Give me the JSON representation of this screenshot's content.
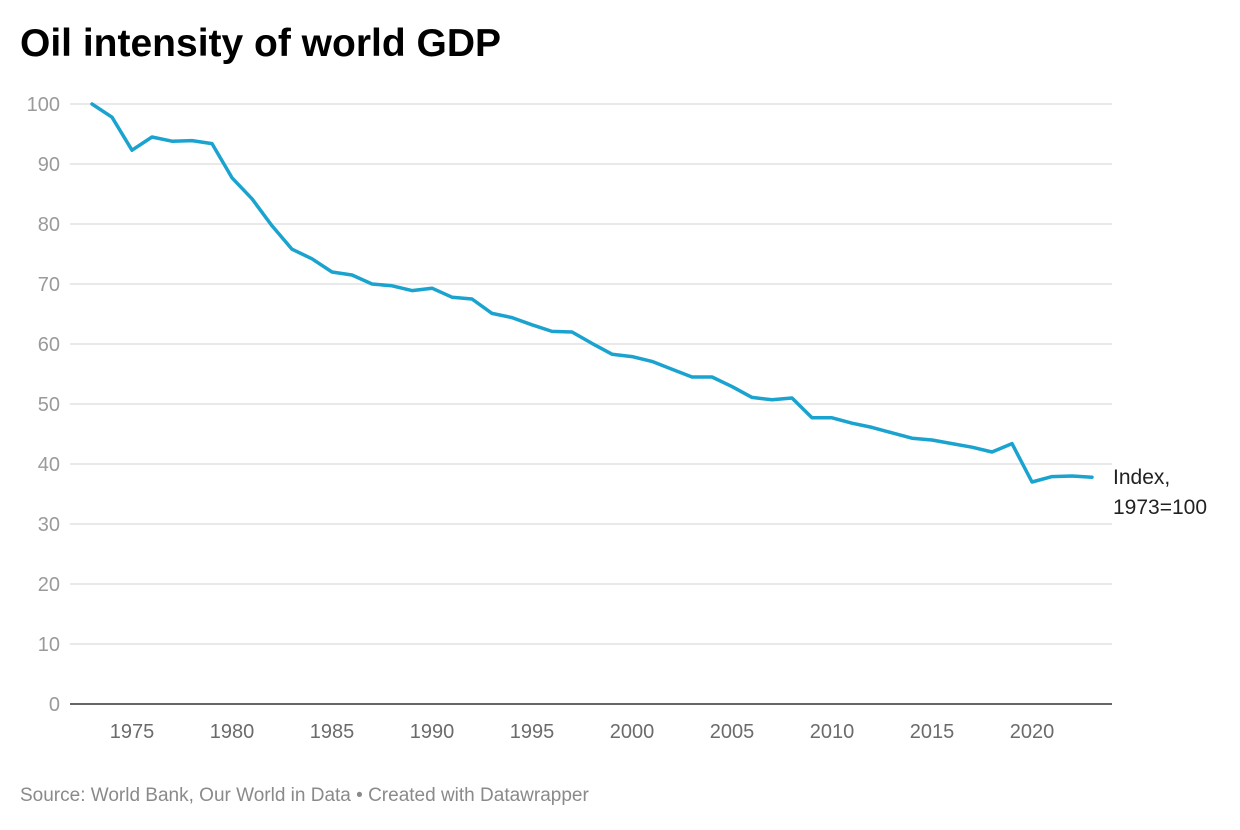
{
  "chart_data": {
    "type": "line",
    "title": "Oil intensity of world GDP",
    "xlabel": "",
    "ylabel": "",
    "ylim": [
      0,
      100
    ],
    "xlim": [
      1973,
      2023
    ],
    "grid": true,
    "yticks": [
      0,
      10,
      20,
      30,
      40,
      50,
      60,
      70,
      80,
      90,
      100
    ],
    "xticks": [
      1975,
      1980,
      1985,
      1990,
      1995,
      2000,
      2005,
      2010,
      2015,
      2020
    ],
    "series": [
      {
        "name": "Index, 1973=100",
        "label_lines": [
          "Index,",
          "1973=100"
        ],
        "color": "#1ba3d0",
        "x": [
          1973,
          1974,
          1975,
          1976,
          1977,
          1978,
          1979,
          1980,
          1981,
          1982,
          1983,
          1984,
          1985,
          1986,
          1987,
          1988,
          1989,
          1990,
          1991,
          1992,
          1993,
          1994,
          1995,
          1996,
          1997,
          1998,
          1999,
          2000,
          2001,
          2002,
          2003,
          2004,
          2005,
          2006,
          2007,
          2008,
          2009,
          2010,
          2011,
          2012,
          2013,
          2014,
          2015,
          2016,
          2017,
          2018,
          2019,
          2020,
          2021,
          2022,
          2023
        ],
        "values": [
          100,
          97.8,
          92.3,
          94.5,
          93.8,
          93.9,
          93.4,
          87.7,
          84.2,
          79.7,
          75.8,
          74.2,
          72.0,
          71.5,
          70.0,
          69.7,
          68.9,
          69.3,
          67.8,
          67.5,
          65.1,
          64.4,
          63.2,
          62.1,
          62.0,
          60.1,
          58.3,
          57.9,
          57.1,
          55.8,
          54.5,
          54.5,
          52.9,
          51.1,
          50.7,
          51.0,
          47.7,
          47.7,
          46.8,
          46.1,
          45.2,
          44.3,
          44.0,
          43.4,
          42.8,
          42.0,
          43.4,
          37.0,
          37.9,
          38.0,
          37.8
        ]
      }
    ]
  },
  "source": "Source: World Bank, Our World in Data • Created with Datawrapper"
}
